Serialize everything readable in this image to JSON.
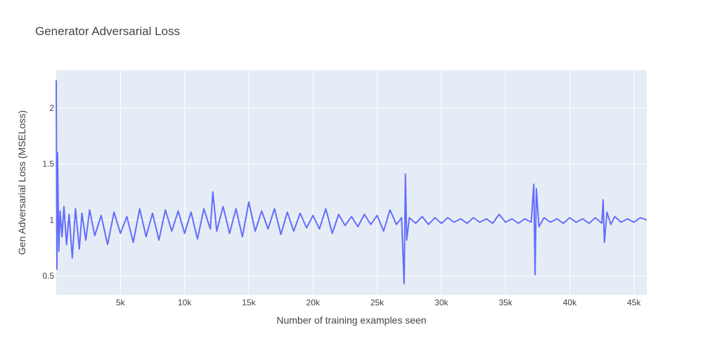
{
  "chart_data": {
    "type": "line",
    "title": "Generator Adversarial Loss",
    "xlabel": "Number of training examples seen",
    "ylabel": "Gen Adversarial Loss (MSELoss)",
    "xlim": [
      0,
      46000
    ],
    "ylim": [
      0.33,
      2.34
    ],
    "x_ticks": [
      {
        "value": 5000,
        "label": "5k"
      },
      {
        "value": 10000,
        "label": "10k"
      },
      {
        "value": 15000,
        "label": "15k"
      },
      {
        "value": 20000,
        "label": "20k"
      },
      {
        "value": 25000,
        "label": "25k"
      },
      {
        "value": 30000,
        "label": "30k"
      },
      {
        "value": 35000,
        "label": "35k"
      },
      {
        "value": 40000,
        "label": "40k"
      },
      {
        "value": 45000,
        "label": "45k"
      }
    ],
    "y_ticks": [
      {
        "value": 0.5,
        "label": "0.5"
      },
      {
        "value": 1,
        "label": "1"
      },
      {
        "value": 1.5,
        "label": "1.5"
      },
      {
        "value": 2,
        "label": "2"
      }
    ],
    "grid": true,
    "series": [
      {
        "color": "#636efa",
        "x": [
          0,
          50,
          100,
          200,
          300,
          450,
          600,
          800,
          1000,
          1250,
          1500,
          1800,
          2000,
          2300,
          2600,
          3000,
          3500,
          4000,
          4500,
          5000,
          5500,
          6000,
          6500,
          7000,
          7500,
          8000,
          8500,
          9000,
          9500,
          10000,
          10500,
          11000,
          11500,
          12000,
          12200,
          12500,
          13000,
          13500,
          14000,
          14500,
          15000,
          15500,
          16000,
          16500,
          17000,
          17500,
          18000,
          18500,
          19000,
          19500,
          20000,
          20500,
          21000,
          21500,
          22000,
          22500,
          23000,
          23500,
          24000,
          24500,
          25000,
          25500,
          26000,
          26500,
          26900,
          27100,
          27200,
          27300,
          27500,
          28000,
          28500,
          29000,
          29500,
          30000,
          30500,
          31000,
          31500,
          32000,
          32500,
          33000,
          33500,
          34000,
          34500,
          35000,
          35500,
          36000,
          36500,
          37000,
          37200,
          37300,
          37400,
          37600,
          38000,
          38500,
          39000,
          39500,
          40000,
          40500,
          41000,
          41500,
          42000,
          42500,
          42600,
          42700,
          42900,
          43200,
          43500,
          44000,
          44500,
          45000,
          45500,
          46000
        ],
        "y": [
          2.25,
          0.56,
          1.6,
          0.72,
          1.08,
          0.85,
          1.12,
          0.78,
          1.05,
          0.66,
          1.1,
          0.74,
          1.06,
          0.82,
          1.09,
          0.86,
          1.04,
          0.78,
          1.07,
          0.88,
          1.03,
          0.8,
          1.1,
          0.85,
          1.06,
          0.82,
          1.09,
          0.9,
          1.08,
          0.88,
          1.07,
          0.83,
          1.1,
          0.92,
          1.25,
          0.9,
          1.12,
          0.88,
          1.1,
          0.85,
          1.16,
          0.9,
          1.08,
          0.92,
          1.1,
          0.87,
          1.07,
          0.9,
          1.06,
          0.93,
          1.04,
          0.92,
          1.1,
          0.88,
          1.05,
          0.95,
          1.03,
          0.94,
          1.05,
          0.96,
          1.04,
          0.9,
          1.09,
          0.96,
          1.02,
          0.43,
          1.41,
          0.82,
          1.02,
          0.97,
          1.03,
          0.96,
          1.02,
          0.97,
          1.02,
          0.98,
          1.01,
          0.97,
          1.02,
          0.98,
          1.01,
          0.97,
          1.05,
          0.98,
          1.01,
          0.97,
          1.01,
          0.98,
          1.32,
          0.51,
          1.28,
          0.94,
          1.02,
          0.98,
          1.01,
          0.97,
          1.02,
          0.98,
          1.01,
          0.97,
          1.02,
          0.97,
          1.18,
          0.8,
          1.07,
          0.96,
          1.03,
          0.98,
          1.01,
          0.98,
          1.02,
          1.0
        ]
      }
    ]
  }
}
